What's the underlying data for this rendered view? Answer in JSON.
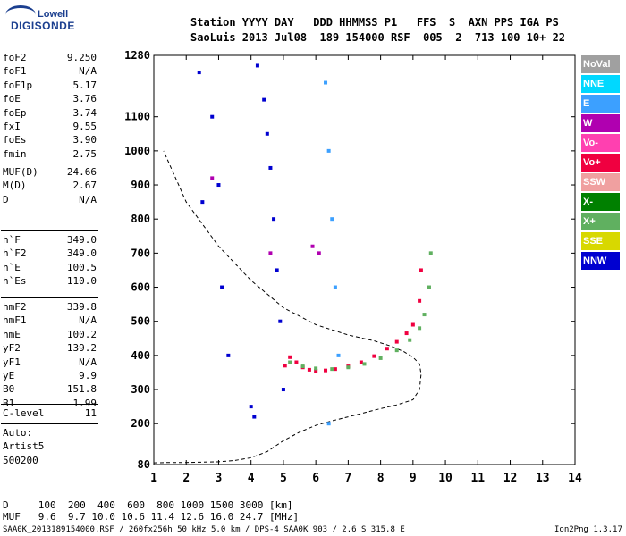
{
  "logo": {
    "top": "Lowell",
    "bottom": "DIGISONDE"
  },
  "header": {
    "line1": "Station YYYY DAY   DDD HHMMSS P1   FFS  S  AXN PPS IGA PS",
    "line2": "SaoLuis 2013 Jul08  189 154000 RSF  005  2  713 100 10+ 22"
  },
  "params": [
    {
      "label": "foF2",
      "value": "9.250"
    },
    {
      "label": "foF1",
      "value": "N/A"
    },
    {
      "label": "foF1p",
      "value": "5.17"
    },
    {
      "label": "foE",
      "value": "3.76"
    },
    {
      "label": "foEp",
      "value": "3.74"
    },
    {
      "label": "fxI",
      "value": "9.55"
    },
    {
      "label": "foEs",
      "value": "3.90"
    },
    {
      "label": "fmin",
      "value": "2.75"
    },
    {
      "label": "MUF(D)",
      "value": "24.66"
    },
    {
      "label": "M(D)",
      "value": "2.67"
    },
    {
      "label": "D",
      "value": "N/A"
    },
    {
      "label": "h`F",
      "value": "349.0"
    },
    {
      "label": "h`F2",
      "value": "349.0"
    },
    {
      "label": "h`E",
      "value": "100.5"
    },
    {
      "label": "h`Es",
      "value": "110.0"
    },
    {
      "label": "hmF2",
      "value": "339.8"
    },
    {
      "label": "hmF1",
      "value": "N/A"
    },
    {
      "label": "hmE",
      "value": "100.2"
    },
    {
      "label": "yF2",
      "value": "139.2"
    },
    {
      "label": "yF1",
      "value": "N/A"
    },
    {
      "label": "yE",
      "value": "9.9"
    },
    {
      "label": "B0",
      "value": "151.8"
    },
    {
      "label": "B1",
      "value": "1.99"
    },
    {
      "label": "C-level",
      "value": "11"
    },
    {
      "label": "Auto:",
      "value": ""
    },
    {
      "label": "Artist5",
      "value": ""
    },
    {
      "label": "500200",
      "value": ""
    }
  ],
  "legend": [
    {
      "label": "NoVal",
      "color": "#a0a0a0"
    },
    {
      "label": "NNE",
      "color": "#00d8ff"
    },
    {
      "label": "E",
      "color": "#3ca0ff"
    },
    {
      "label": "W",
      "color": "#b000b0"
    },
    {
      "label": "Vo-",
      "color": "#ff40b0"
    },
    {
      "label": "Vo+",
      "color": "#f00040"
    },
    {
      "label": "SSW",
      "color": "#f0a0a0"
    },
    {
      "label": "X-",
      "color": "#008000"
    },
    {
      "label": "X+",
      "color": "#60b060"
    },
    {
      "label": "SSE",
      "color": "#d8d800"
    },
    {
      "label": "NNW",
      "color": "#0000d0"
    }
  ],
  "footer": {
    "d_row": "D     100  200  400  600  800 1000 1500 3000 [km]",
    "muf_row": "MUF   9.6  9.7 10.0 10.6 11.4 12.6 16.0 24.7 [MHz]",
    "file_info": "SAA0K_2013189154000.RSF / 260fx256h 50 kHz 5.0 km / DPS-4 SAA0K 903 / 2.6 S 315.8 E",
    "version": "Ion2Png 1.3.17"
  },
  "chart_data": {
    "type": "scatter",
    "xlim": [
      1,
      14
    ],
    "ylim": [
      80,
      1280
    ],
    "x_ticks": [
      1,
      2,
      3,
      4,
      5,
      6,
      7,
      8,
      9,
      10,
      11,
      12,
      13,
      14
    ],
    "y_ticks": [
      80,
      200,
      300,
      400,
      500,
      600,
      700,
      800,
      900,
      1000,
      1100,
      1280
    ],
    "series": [
      {
        "name": "Vo+",
        "color": "#f00040",
        "x": [
          5.05,
          5.2,
          5.4,
          5.6,
          5.8,
          6.0,
          6.3,
          6.6,
          7.0,
          7.4,
          7.8,
          8.2,
          8.5,
          8.8,
          9.0,
          9.2,
          9.25
        ],
        "y": [
          370,
          395,
          380,
          365,
          358,
          355,
          356,
          360,
          368,
          380,
          398,
          420,
          440,
          465,
          490,
          560,
          650
        ]
      },
      {
        "name": "X+",
        "color": "#60b060",
        "x": [
          5.2,
          5.6,
          6.0,
          6.5,
          7.0,
          7.5,
          8.0,
          8.5,
          8.9,
          9.2,
          9.35,
          9.5,
          9.55
        ],
        "y": [
          380,
          368,
          362,
          360,
          365,
          375,
          392,
          415,
          445,
          480,
          520,
          600,
          700
        ]
      },
      {
        "name": "NNW",
        "color": "#0000d0",
        "x": [
          2.4,
          2.5,
          2.8,
          3.0,
          3.1,
          3.3,
          4.2,
          4.4,
          4.5,
          4.6,
          4.7,
          4.8,
          4.9,
          5.0,
          4.0,
          4.1
        ],
        "y": [
          1230,
          850,
          1100,
          900,
          600,
          400,
          1250,
          1150,
          1050,
          950,
          800,
          650,
          500,
          300,
          250,
          220
        ]
      },
      {
        "name": "E",
        "color": "#3ca0ff",
        "x": [
          6.3,
          6.4,
          6.5,
          6.6,
          6.7,
          6.4
        ],
        "y": [
          1200,
          1000,
          800,
          600,
          400,
          200
        ]
      },
      {
        "name": "W",
        "color": "#b000b0",
        "x": [
          2.8,
          4.6,
          5.9,
          6.1
        ],
        "y": [
          920,
          700,
          720,
          700
        ]
      }
    ],
    "profile_line": {
      "x": [
        0.8,
        1.5,
        2.0,
        2.5,
        3.0,
        3.5,
        4.0,
        4.5,
        5.0,
        5.5,
        6.0,
        6.5,
        7.0,
        7.5,
        8.0,
        8.5,
        9.0,
        9.2,
        9.25,
        9.2,
        9.0,
        8.7,
        8.3,
        7.8,
        7.0,
        6.0,
        5.0,
        4.0,
        3.0,
        2.0,
        1.3
      ],
      "y": [
        85,
        86,
        86,
        87,
        88,
        92,
        100,
        118,
        150,
        175,
        195,
        208,
        220,
        232,
        244,
        255,
        270,
        300,
        345,
        375,
        395,
        412,
        428,
        443,
        460,
        490,
        540,
        620,
        720,
        850,
        1000
      ]
    }
  }
}
